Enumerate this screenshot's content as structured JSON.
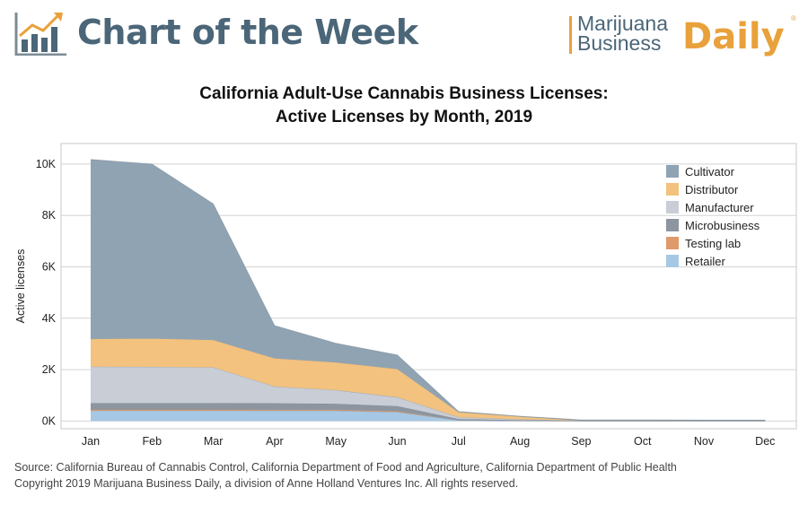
{
  "header": {
    "title": "Chart of the Week",
    "brand_line1": "Marijuana",
    "brand_line2": "Business",
    "brand_daily": "Daily",
    "brand_reg": "®"
  },
  "colors": {
    "brand_blue": "#4b6678",
    "brand_orange": "#e9a13b"
  },
  "chart_data": {
    "type": "area",
    "title_line1": "California Adult-Use Cannabis Business Licenses:",
    "title_line2": "Active Licenses by Month, 2019",
    "xlabel": "",
    "ylabel": "Active licenses",
    "categories": [
      "Jan",
      "Feb",
      "Mar",
      "Apr",
      "May",
      "Jun",
      "Jul",
      "Aug",
      "Sep",
      "Oct",
      "Nov",
      "Dec"
    ],
    "ylim": [
      -300,
      10800
    ],
    "yticks": [
      0,
      2000,
      4000,
      6000,
      8000,
      10000
    ],
    "ytick_labels": [
      "0K",
      "2K",
      "4K",
      "6K",
      "8K",
      "10K"
    ],
    "grid": true,
    "stacked": true,
    "legend_position": "top-right",
    "series": [
      {
        "name": "Retailer",
        "color": "#a7c8e4",
        "values": [
          400,
          400,
          400,
          400,
          400,
          350,
          30,
          10,
          5,
          5,
          5,
          5
        ]
      },
      {
        "name": "Testing lab",
        "color": "#de9a6a",
        "values": [
          50,
          50,
          50,
          45,
          45,
          40,
          10,
          5,
          5,
          5,
          5,
          5
        ]
      },
      {
        "name": "Microbusiness",
        "color": "#8c95a0",
        "values": [
          250,
          250,
          250,
          250,
          230,
          190,
          40,
          20,
          5,
          5,
          5,
          5
        ]
      },
      {
        "name": "Manufacturer",
        "color": "#c8cdd6",
        "values": [
          1420,
          1410,
          1390,
          650,
          530,
          350,
          70,
          30,
          5,
          5,
          5,
          5
        ]
      },
      {
        "name": "Distributor",
        "color": "#f3c27e",
        "values": [
          1080,
          1110,
          1070,
          1100,
          1080,
          1100,
          200,
          110,
          10,
          10,
          5,
          5
        ]
      },
      {
        "name": "Cultivator",
        "color": "#8fa3b3",
        "values": [
          6980,
          6780,
          5290,
          1270,
          740,
          540,
          20,
          15,
          15,
          15,
          10,
          10
        ]
      }
    ]
  },
  "legend_order": [
    "Cultivator",
    "Distributor",
    "Manufacturer",
    "Microbusiness",
    "Testing lab",
    "Retailer"
  ],
  "footer": {
    "source": "Source: California Bureau of Cannabis Control, California Department of Food and Agriculture, California Department of Public Health",
    "copyright": "Copyright 2019 Marijuana Business Daily, a division of Anne Holland Ventures Inc. All rights reserved."
  }
}
